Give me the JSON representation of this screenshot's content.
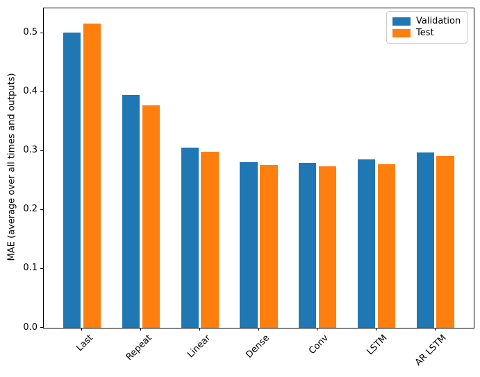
{
  "chart_data": {
    "type": "bar",
    "title": "",
    "xlabel": "",
    "ylabel": "MAE (average over all times and outputs)",
    "categories": [
      "Last",
      "Repeat",
      "Linear",
      "Dense",
      "Conv",
      "LSTM",
      "AR LSTM"
    ],
    "series": [
      {
        "name": "Validation",
        "color": "#1f77b4",
        "values": [
          0.501,
          0.395,
          0.306,
          0.281,
          0.28,
          0.286,
          0.298
        ]
      },
      {
        "name": "Test",
        "color": "#ff7f0e",
        "values": [
          0.516,
          0.377,
          0.299,
          0.276,
          0.274,
          0.277,
          0.292
        ]
      }
    ],
    "ytick_labels": [
      "0.0",
      "0.1",
      "0.2",
      "0.3",
      "0.4",
      "0.5"
    ],
    "yticks": [
      0.0,
      0.1,
      0.2,
      0.3,
      0.4,
      0.5
    ],
    "ylim": [
      0,
      0.542
    ],
    "xlim": [
      -0.652,
      6.652
    ],
    "bar_width": 0.3,
    "bar_offsets": [
      -0.17,
      0.17
    ],
    "grid": false,
    "legend_position": "upper right",
    "x_tick_rotation": 45
  }
}
